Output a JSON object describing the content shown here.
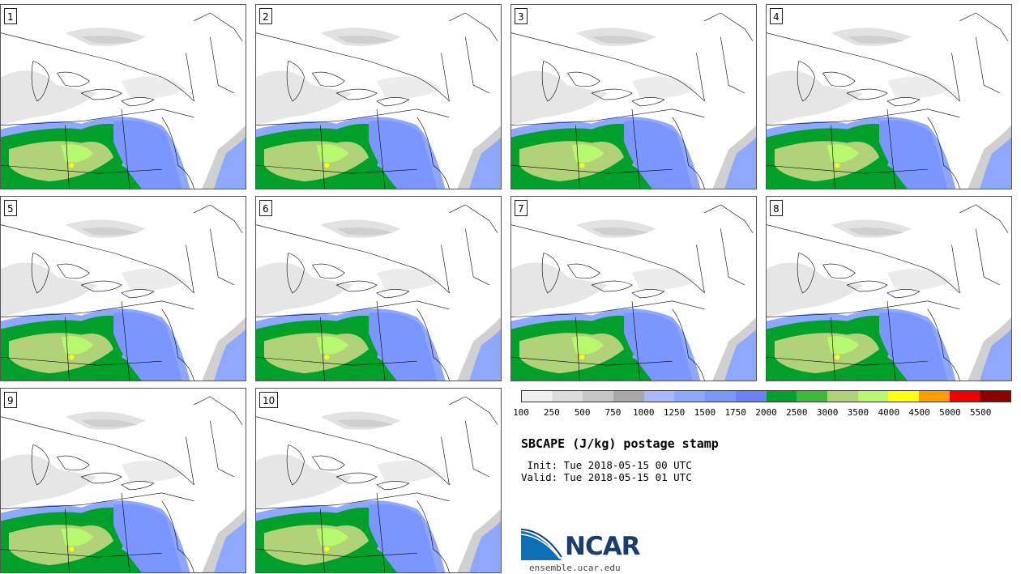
{
  "panels": [
    "1",
    "2",
    "3",
    "4",
    "5",
    "6",
    "7",
    "8",
    "9",
    "10"
  ],
  "colorbar": {
    "colors": [
      "#f0f0f0",
      "#dcdcdc",
      "#c6c6c6",
      "#a8a8a8",
      "#aab8ff",
      "#8ea8ff",
      "#7c96ff",
      "#6a82f2",
      "#00a02a",
      "#3cba3c",
      "#b2d27a",
      "#b8f86e",
      "#ffff14",
      "#ff9c00",
      "#ee0000",
      "#8c0000"
    ],
    "ticks": [
      "100",
      "250",
      "500",
      "750",
      "1000",
      "1250",
      "1500",
      "1750",
      "2000",
      "2500",
      "3000",
      "3500",
      "4000",
      "4500",
      "5000",
      "5500"
    ]
  },
  "title": "SBCAPE (J/kg) postage stamp",
  "init": " Init: Tue 2018-05-15 00 UTC",
  "valid": "Valid: Tue 2018-05-15 01 UTC",
  "logo": {
    "name": "NCAR",
    "url": "ensemble.ucar.edu"
  }
}
